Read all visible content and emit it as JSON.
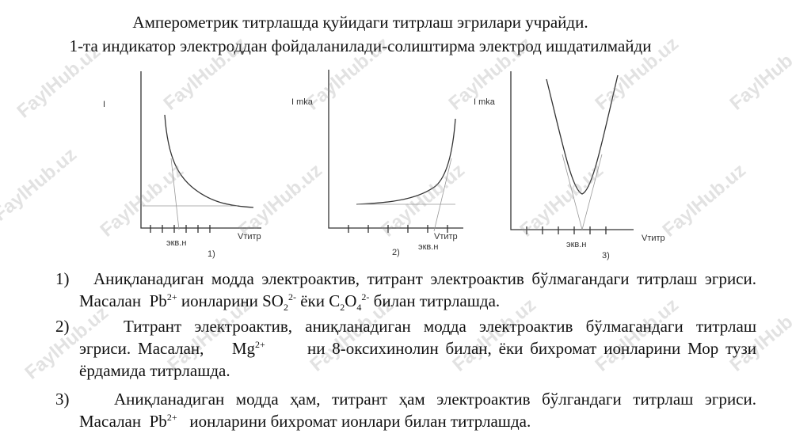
{
  "header": {
    "lines": [
      "Амперометрик титрлашда қуйидаги титрлаш эгрилари учрайди.",
      "1-та индикатор электроддан фойдаланилади-солиштирма электрод ишдатилмайди"
    ]
  },
  "figures": [
    {
      "y_label": "I",
      "x_label": "Vтитр",
      "eq_label": "экв.н",
      "number": "1)"
    },
    {
      "y_label": "I mka",
      "x_label": "Vтитр",
      "eq_label": "экв.н",
      "number": "2)"
    },
    {
      "y_label": "I mka",
      "x_label": "Vтитр",
      "eq_label": "экв.н",
      "number": "3)"
    }
  ],
  "items": [
    {
      "marker": "1)",
      "parts": [
        "Аниқланадиган модда электроактив, титрант электроактив бўлмагандаги титрлаш эгриси. Масалан",
        "Pb",
        "2+",
        "ионларини",
        "SO",
        "2",
        "2-",
        "ёки",
        "C",
        "2",
        "O",
        "4",
        "2-",
        "билан титрлашда."
      ]
    },
    {
      "marker": "2)",
      "parts": [
        "Титрант электроактив, аниқланадиган модда электроактив бўлмагандаги титрлаш эгриси. Масалан,",
        "Mg",
        "2+",
        "ни 8-оксихинолин билан, ёки бихромат ионларини Мор тузи ёрдамида титрлашда."
      ]
    },
    {
      "marker": "3)",
      "parts": [
        "Аниқланадиган модда ҳам, титрант ҳам электроактив бўлгандаги титрлаш эгриси. Масалан",
        "Pb",
        "2+",
        "ионларини бихромат ионлари билан титрлашда."
      ]
    }
  ],
  "watermark": "FaylHub.uz"
}
